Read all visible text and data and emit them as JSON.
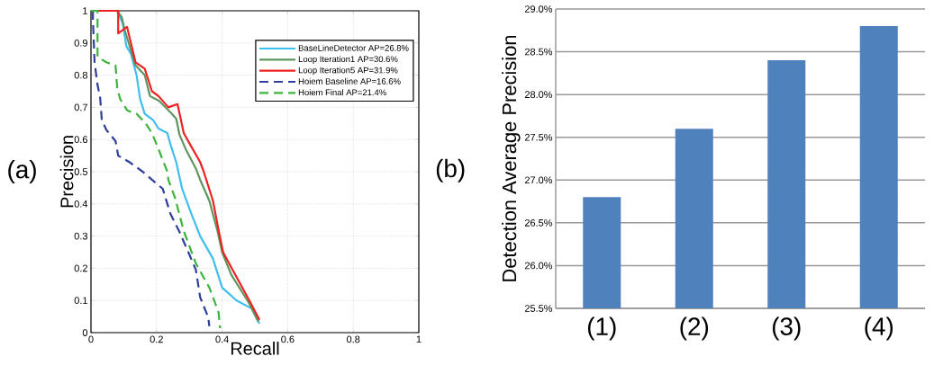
{
  "chart_data": [
    {
      "type": "line",
      "xlabel": "Recall",
      "ylabel": "Precision",
      "xlim": [
        0,
        1
      ],
      "ylim": [
        0,
        1
      ],
      "xticks": [
        0,
        0.2,
        0.4,
        0.6,
        0.8,
        1
      ],
      "yticks": [
        0,
        0.1,
        0.2,
        0.3,
        0.4,
        0.5,
        0.6,
        0.7,
        0.8,
        0.9,
        1
      ],
      "grid": true,
      "legend": "top right",
      "annotations": [
        "(a)"
      ],
      "series": [
        {
          "name": "BaseLineDetector AP=26.8%",
          "color": "#3fbfef",
          "line_style": "solid",
          "x": [
            0,
            0.08,
            0.097,
            0.108,
            0.122,
            0.139,
            0.15,
            0.164,
            0.19,
            0.206,
            0.233,
            0.242,
            0.26,
            0.278,
            0.306,
            0.333,
            0.372,
            0.4,
            0.444,
            0.49,
            0.514
          ],
          "values": [
            1,
            1,
            0.96,
            0.89,
            0.866,
            0.8,
            0.726,
            0.68,
            0.66,
            0.634,
            0.62,
            0.586,
            0.53,
            0.447,
            0.37,
            0.3,
            0.23,
            0.14,
            0.1,
            0.075,
            0.028
          ]
        },
        {
          "name": "Loop Iteration1 AP=30.6%",
          "color": "#5e9660",
          "line_style": "solid",
          "x": [
            0,
            0.08,
            0.094,
            0.103,
            0.136,
            0.164,
            0.18,
            0.208,
            0.242,
            0.26,
            0.27,
            0.289,
            0.32,
            0.333,
            0.361,
            0.386,
            0.4,
            0.428,
            0.483,
            0.51
          ],
          "values": [
            1,
            1,
            0.98,
            0.94,
            0.83,
            0.8,
            0.735,
            0.72,
            0.685,
            0.665,
            0.615,
            0.57,
            0.51,
            0.475,
            0.41,
            0.315,
            0.25,
            0.18,
            0.09,
            0.035
          ]
        },
        {
          "name": "Loop Iteration5 AP=31.9%",
          "color": "#ee2222",
          "line_style": "solid",
          "x": [
            0,
            0.083,
            0.083,
            0.11,
            0.136,
            0.164,
            0.186,
            0.206,
            0.236,
            0.264,
            0.283,
            0.305,
            0.333,
            0.344,
            0.372,
            0.389,
            0.403,
            0.44,
            0.483,
            0.514
          ],
          "values": [
            1,
            1,
            0.93,
            0.95,
            0.84,
            0.82,
            0.75,
            0.735,
            0.7,
            0.71,
            0.62,
            0.58,
            0.53,
            0.5,
            0.41,
            0.32,
            0.25,
            0.18,
            0.1,
            0.04
          ]
        },
        {
          "name": "Hoiem  Baseline AP=16.6%",
          "color": "#2e3f9c",
          "line_style": "dashed",
          "x": [
            0.006,
            0.006,
            0.011,
            0.02,
            0.028,
            0.033,
            0.047,
            0.075,
            0.083,
            0.117,
            0.158,
            0.186,
            0.219,
            0.242,
            0.269,
            0.297,
            0.32,
            0.333,
            0.358,
            0.361
          ],
          "values": [
            1,
            0.97,
            0.84,
            0.77,
            0.73,
            0.66,
            0.63,
            0.595,
            0.55,
            0.53,
            0.5,
            0.475,
            0.447,
            0.37,
            0.315,
            0.25,
            0.195,
            0.11,
            0.047,
            0.02
          ]
        },
        {
          "name": "Hoiem Final AP=21.4%",
          "color": "#3cb43c",
          "line_style": "dashed",
          "x": [
            0,
            0.02,
            0.02,
            0.047,
            0.075,
            0.08,
            0.089,
            0.111,
            0.139,
            0.167,
            0.186,
            0.206,
            0.233,
            0.236,
            0.256,
            0.283,
            0.32,
            0.361,
            0.389,
            0.394
          ],
          "values": [
            1,
            1,
            0.857,
            0.84,
            0.83,
            0.76,
            0.726,
            0.69,
            0.68,
            0.65,
            0.62,
            0.57,
            0.5,
            0.475,
            0.42,
            0.316,
            0.215,
            0.14,
            0.064,
            0.014
          ]
        }
      ]
    },
    {
      "type": "bar",
      "ylabel": "Detection Average Precision",
      "categories": [
        "(1)",
        "(2)",
        "(3)",
        "(4)"
      ],
      "values": [
        26.8,
        27.6,
        28.4,
        28.8
      ],
      "color": "#4f81bd",
      "ylim": [
        25.5,
        29
      ],
      "yticks": [
        {
          "value": 25.5,
          "label": "25.5%"
        },
        {
          "value": 26,
          "label": "26.0%"
        },
        {
          "value": 26.5,
          "label": "26.5%"
        },
        {
          "value": 27,
          "label": "27.0%"
        },
        {
          "value": 27.5,
          "label": "27.5%"
        },
        {
          "value": 28,
          "label": "28.0%"
        },
        {
          "value": 28.5,
          "label": "28.5%"
        },
        {
          "value": 29,
          "label": "29.0%"
        }
      ],
      "grid": "y",
      "annotations": [
        "(b)"
      ]
    }
  ]
}
